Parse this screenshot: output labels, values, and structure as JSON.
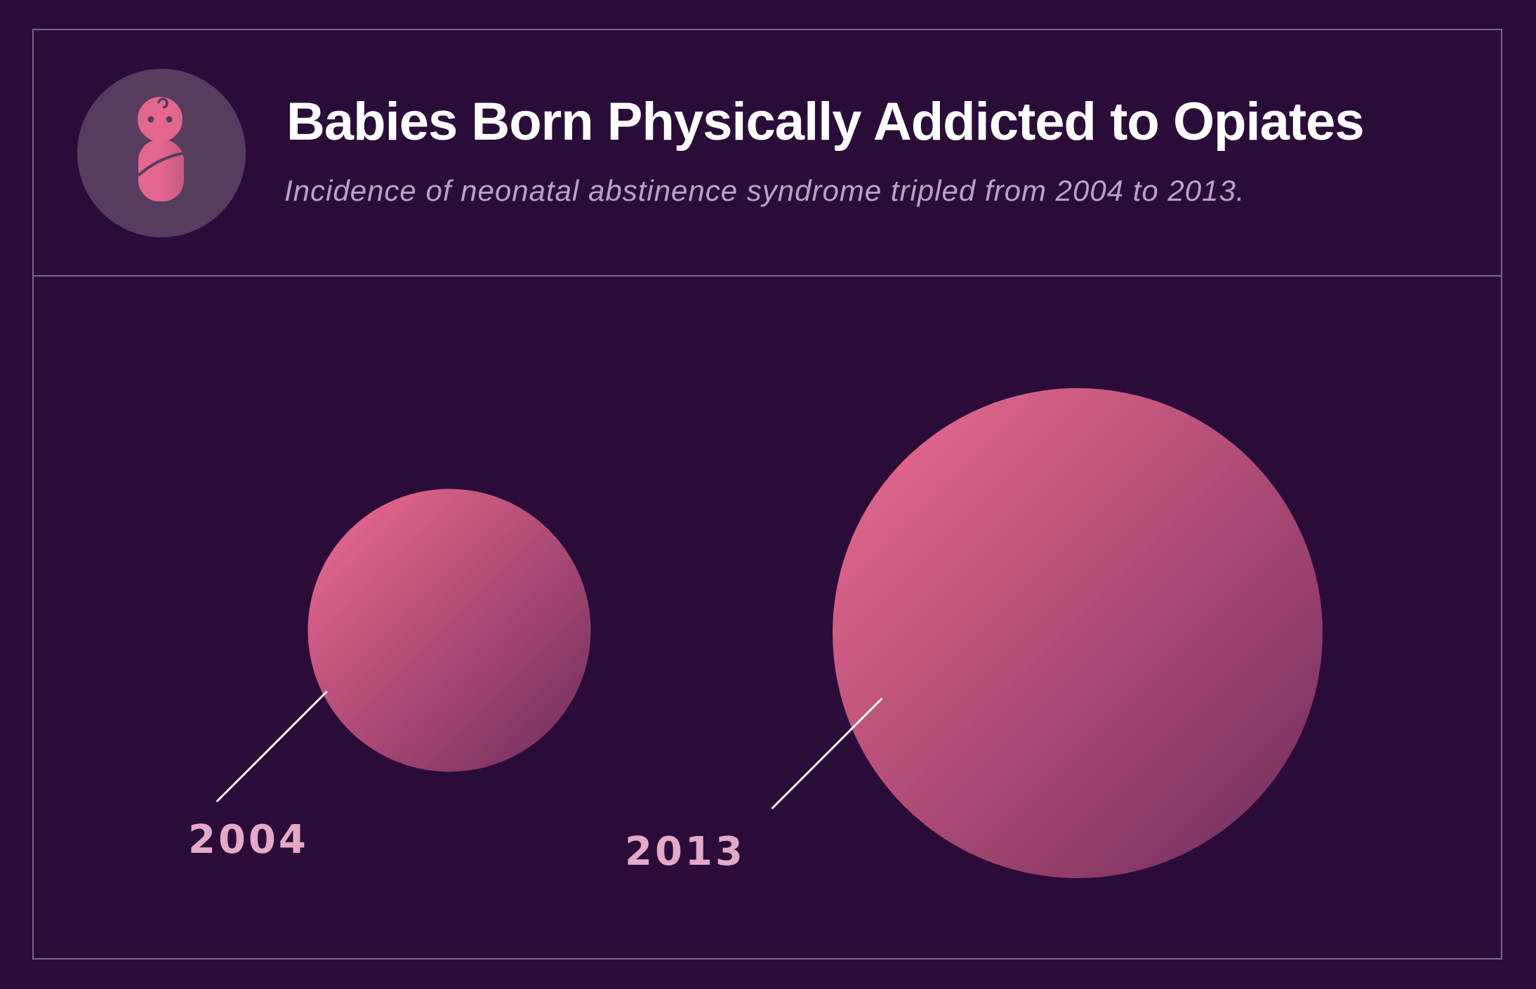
{
  "header": {
    "title": "Babies Born Physically Addicted to Opiates",
    "subtitle": "Incidence of neonatal abstinence syndrome tripled from 2004 to 2013.",
    "icon": "swaddled-baby-icon"
  },
  "colors": {
    "background": "#2b0c39",
    "bubble_light": "#e3668c",
    "bubble_dark": "#6e2c5a",
    "label": "#e3a9c6",
    "icon_circle": "#553d5f"
  },
  "chart_data": {
    "type": "bubble",
    "title": "Babies Born Physically Addicted to Opiates",
    "subtitle": "Incidence of neonatal abstinence syndrome tripled from 2004 to 2013.",
    "categories": [
      "2004",
      "2013"
    ],
    "values": [
      1,
      3
    ],
    "value_note": "relative incidence (tripled)"
  }
}
